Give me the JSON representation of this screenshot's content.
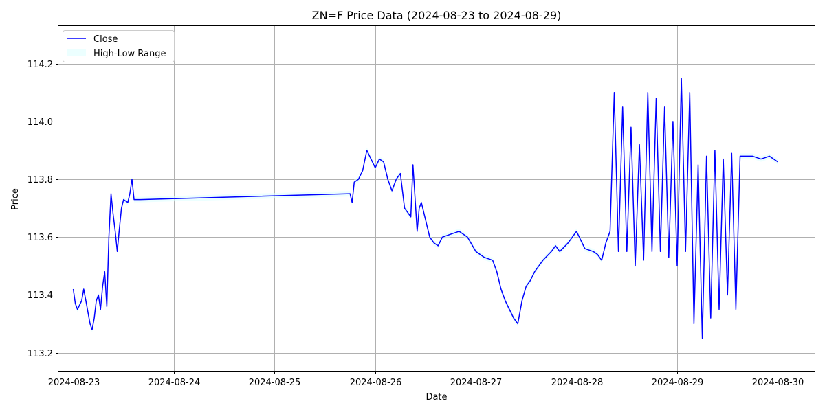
{
  "chart_data": {
    "type": "line",
    "title": "ZN=F Price Data (2024-08-23 to 2024-08-29)",
    "xlabel": "Date",
    "ylabel": "Price",
    "xlim": [
      "2024-08-22T20:28",
      "2024-08-30T08:47"
    ],
    "ylim": [
      113.135,
      114.33
    ],
    "x_ticks": [
      "2024-08-23",
      "2024-08-24",
      "2024-08-25",
      "2024-08-26",
      "2024-08-27",
      "2024-08-28",
      "2024-08-29",
      "2024-08-30"
    ],
    "y_ticks": [
      113.2,
      113.4,
      113.6,
      113.8,
      114.0,
      114.2
    ],
    "grid": true,
    "legend_position": "upper-left",
    "colors": {
      "close": "#0000ff",
      "range_fill": "#e0ffff",
      "grid": "#b0b0b0"
    },
    "series": [
      {
        "name": "Close",
        "x": [
          "2024-08-23T00:00",
          "2024-08-23T00:30",
          "2024-08-23T01:00",
          "2024-08-23T02:00",
          "2024-08-23T02:30",
          "2024-08-23T03:00",
          "2024-08-23T04:00",
          "2024-08-23T04:30",
          "2024-08-23T05:00",
          "2024-08-23T05:30",
          "2024-08-23T06:00",
          "2024-08-23T06:30",
          "2024-08-23T07:00",
          "2024-08-23T07:30",
          "2024-08-23T08:00",
          "2024-08-23T08:30",
          "2024-08-23T09:00",
          "2024-08-23T09:30",
          "2024-08-23T10:00",
          "2024-08-23T10:30",
          "2024-08-23T11:00",
          "2024-08-23T11:30",
          "2024-08-23T12:00",
          "2024-08-23T13:00",
          "2024-08-23T13:30",
          "2024-08-23T14:00",
          "2024-08-23T14:30",
          "2024-08-23T15:00",
          "2024-08-23T15:30",
          "2024-08-23T16:00",
          "2024-08-25T18:00",
          "2024-08-25T18:30",
          "2024-08-25T19:00",
          "2024-08-25T20:00",
          "2024-08-25T21:00",
          "2024-08-25T22:00",
          "2024-08-25T23:00",
          "2024-08-26T00:00",
          "2024-08-26T01:00",
          "2024-08-26T02:00",
          "2024-08-26T03:00",
          "2024-08-26T04:00",
          "2024-08-26T05:00",
          "2024-08-26T06:00",
          "2024-08-26T07:00",
          "2024-08-26T08:00",
          "2024-08-26T08:30",
          "2024-08-26T09:00",
          "2024-08-26T10:00",
          "2024-08-26T10:30",
          "2024-08-26T11:00",
          "2024-08-26T12:00",
          "2024-08-26T13:00",
          "2024-08-26T14:00",
          "2024-08-26T15:00",
          "2024-08-26T16:00",
          "2024-08-26T18:00",
          "2024-08-26T20:00",
          "2024-08-26T22:00",
          "2024-08-27T00:00",
          "2024-08-27T02:00",
          "2024-08-27T04:00",
          "2024-08-27T05:00",
          "2024-08-27T06:00",
          "2024-08-27T07:00",
          "2024-08-27T08:00",
          "2024-08-27T09:00",
          "2024-08-27T10:00",
          "2024-08-27T11:00",
          "2024-08-27T12:00",
          "2024-08-27T13:00",
          "2024-08-27T14:00",
          "2024-08-27T16:00",
          "2024-08-27T18:00",
          "2024-08-27T19:00",
          "2024-08-27T20:00",
          "2024-08-27T22:00",
          "2024-08-28T00:00",
          "2024-08-28T02:00",
          "2024-08-28T04:00",
          "2024-08-28T05:00",
          "2024-08-28T06:00",
          "2024-08-28T06:30",
          "2024-08-28T07:00",
          "2024-08-28T08:00",
          "2024-08-28T09:00",
          "2024-08-28T10:00",
          "2024-08-28T11:00",
          "2024-08-28T12:00",
          "2024-08-28T13:00",
          "2024-08-28T14:00",
          "2024-08-28T15:00",
          "2024-08-28T16:00",
          "2024-08-28T17:00",
          "2024-08-28T18:00",
          "2024-08-28T19:00",
          "2024-08-28T20:00",
          "2024-08-28T21:00",
          "2024-08-28T22:00",
          "2024-08-28T23:00",
          "2024-08-29T00:00",
          "2024-08-29T01:00",
          "2024-08-29T02:00",
          "2024-08-29T03:00",
          "2024-08-29T04:00",
          "2024-08-29T05:00",
          "2024-08-29T06:00",
          "2024-08-29T07:00",
          "2024-08-29T08:00",
          "2024-08-29T09:00",
          "2024-08-29T10:00",
          "2024-08-29T11:00",
          "2024-08-29T12:00",
          "2024-08-29T13:00",
          "2024-08-29T14:00",
          "2024-08-29T15:00",
          "2024-08-29T16:00",
          "2024-08-29T18:00",
          "2024-08-29T20:00",
          "2024-08-29T22:00",
          "2024-08-30T00:00"
        ],
        "y": [
          113.42,
          113.37,
          113.35,
          113.38,
          113.42,
          113.38,
          113.3,
          113.28,
          113.32,
          113.38,
          113.4,
          113.35,
          113.43,
          113.48,
          113.36,
          113.6,
          113.75,
          113.68,
          113.62,
          113.55,
          113.63,
          113.7,
          113.73,
          113.72,
          113.75,
          113.8,
          113.73,
          113.73,
          113.73,
          113.73,
          113.75,
          113.72,
          113.79,
          113.8,
          113.83,
          113.9,
          113.87,
          113.84,
          113.87,
          113.86,
          113.8,
          113.76,
          113.8,
          113.82,
          113.7,
          113.68,
          113.67,
          113.85,
          113.62,
          113.7,
          113.72,
          113.66,
          113.6,
          113.58,
          113.57,
          113.6,
          113.61,
          113.62,
          113.6,
          113.55,
          113.53,
          113.52,
          113.48,
          113.42,
          113.38,
          113.35,
          113.32,
          113.3,
          113.38,
          113.43,
          113.45,
          113.48,
          113.52,
          113.55,
          113.57,
          113.55,
          113.58,
          113.62,
          113.56,
          113.55,
          113.54,
          113.52,
          113.55,
          113.58,
          113.62,
          114.1,
          113.55,
          114.05,
          113.55,
          113.98,
          113.5,
          113.92,
          113.52,
          114.1,
          113.55,
          114.08,
          113.55,
          114.05,
          113.53,
          114.0,
          113.5,
          114.15,
          113.55,
          114.1,
          113.3,
          113.85,
          113.25,
          113.88,
          113.32,
          113.9,
          113.35,
          113.87,
          113.4,
          113.89,
          113.35,
          113.88,
          113.88,
          113.88,
          113.87,
          113.88,
          113.86
        ]
      }
    ]
  },
  "legend": {
    "close_label": "Close",
    "range_label": "High-Low Range"
  }
}
